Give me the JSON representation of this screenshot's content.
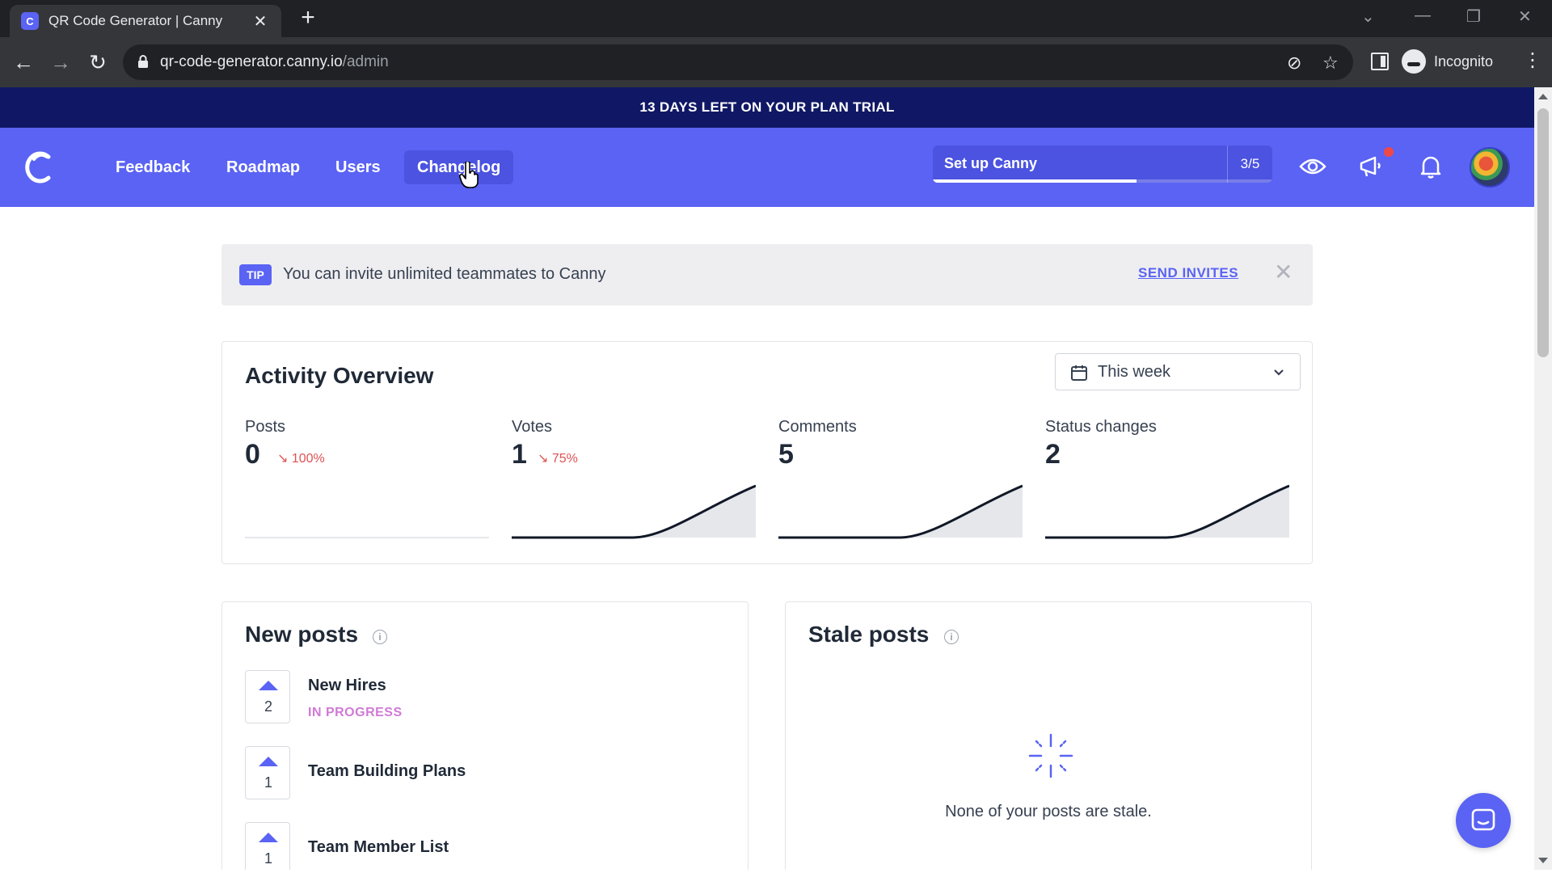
{
  "browser": {
    "tab_title": "QR Code Generator | Canny",
    "tab_close": "✕",
    "new_tab": "+",
    "url_host": "qr-code-generator.canny.io",
    "url_path": "/admin",
    "profile_label": "Incognito"
  },
  "trial_banner": "13 DAYS LEFT ON YOUR PLAN TRIAL",
  "nav": {
    "items": [
      {
        "label": "Feedback"
      },
      {
        "label": "Roadmap"
      },
      {
        "label": "Users"
      },
      {
        "label": "Changelog",
        "active": true
      }
    ],
    "setup": {
      "label": "Set up Canny",
      "count": "3/5",
      "progress": 0.6
    }
  },
  "tip": {
    "badge": "TIP",
    "text": "You can invite unlimited teammates to Canny",
    "action": "SEND INVITES"
  },
  "activity": {
    "title": "Activity Overview",
    "range": "This week",
    "stats": [
      {
        "label": "Posts",
        "value": "0",
        "change": "100%",
        "trend": "down"
      },
      {
        "label": "Votes",
        "value": "1",
        "change": "75%",
        "trend": "down"
      },
      {
        "label": "Comments",
        "value": "5",
        "change": "",
        "trend": "none"
      },
      {
        "label": "Status changes",
        "value": "2",
        "change": "",
        "trend": "none"
      }
    ]
  },
  "new_posts": {
    "title": "New posts",
    "items": [
      {
        "votes": "2",
        "title": "New Hires",
        "status": "IN PROGRESS"
      },
      {
        "votes": "1",
        "title": "Team Building Plans",
        "status": ""
      },
      {
        "votes": "1",
        "title": "Team Member List",
        "status": ""
      }
    ]
  },
  "stale_posts": {
    "title": "Stale posts",
    "empty_text": "None of your posts are stale."
  },
  "colors": {
    "brand": "#5a63f3",
    "banner": "#101865",
    "negative": "#e05252",
    "status_in_progress": "#d07ad6"
  }
}
